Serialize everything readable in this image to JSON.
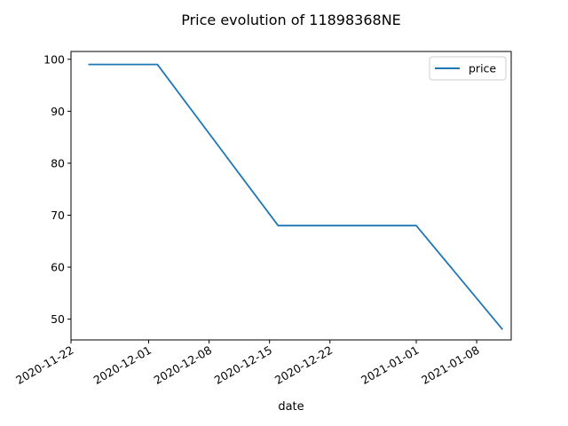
{
  "chart_data": {
    "type": "line",
    "title": "Price evolution of 11898368NE",
    "xlabel": "date",
    "ylabel": "",
    "x": [
      "2020-11-24",
      "2020-12-02",
      "2020-12-16",
      "2021-01-01",
      "2021-01-11"
    ],
    "series": [
      {
        "name": "price",
        "values": [
          99,
          99,
          68,
          68,
          48
        ],
        "color": "#1f77b4"
      }
    ],
    "xlim": [
      "2020-11-22",
      "2021-01-12"
    ],
    "ylim": [
      46,
      101.5
    ],
    "xticks": [
      "2020-11-22",
      "2020-12-01",
      "2020-12-08",
      "2020-12-15",
      "2020-12-22",
      "2021-01-01",
      "2021-01-08"
    ],
    "yticks": [
      50,
      60,
      70,
      80,
      90,
      100
    ],
    "grid": false,
    "legend": "top-right"
  }
}
